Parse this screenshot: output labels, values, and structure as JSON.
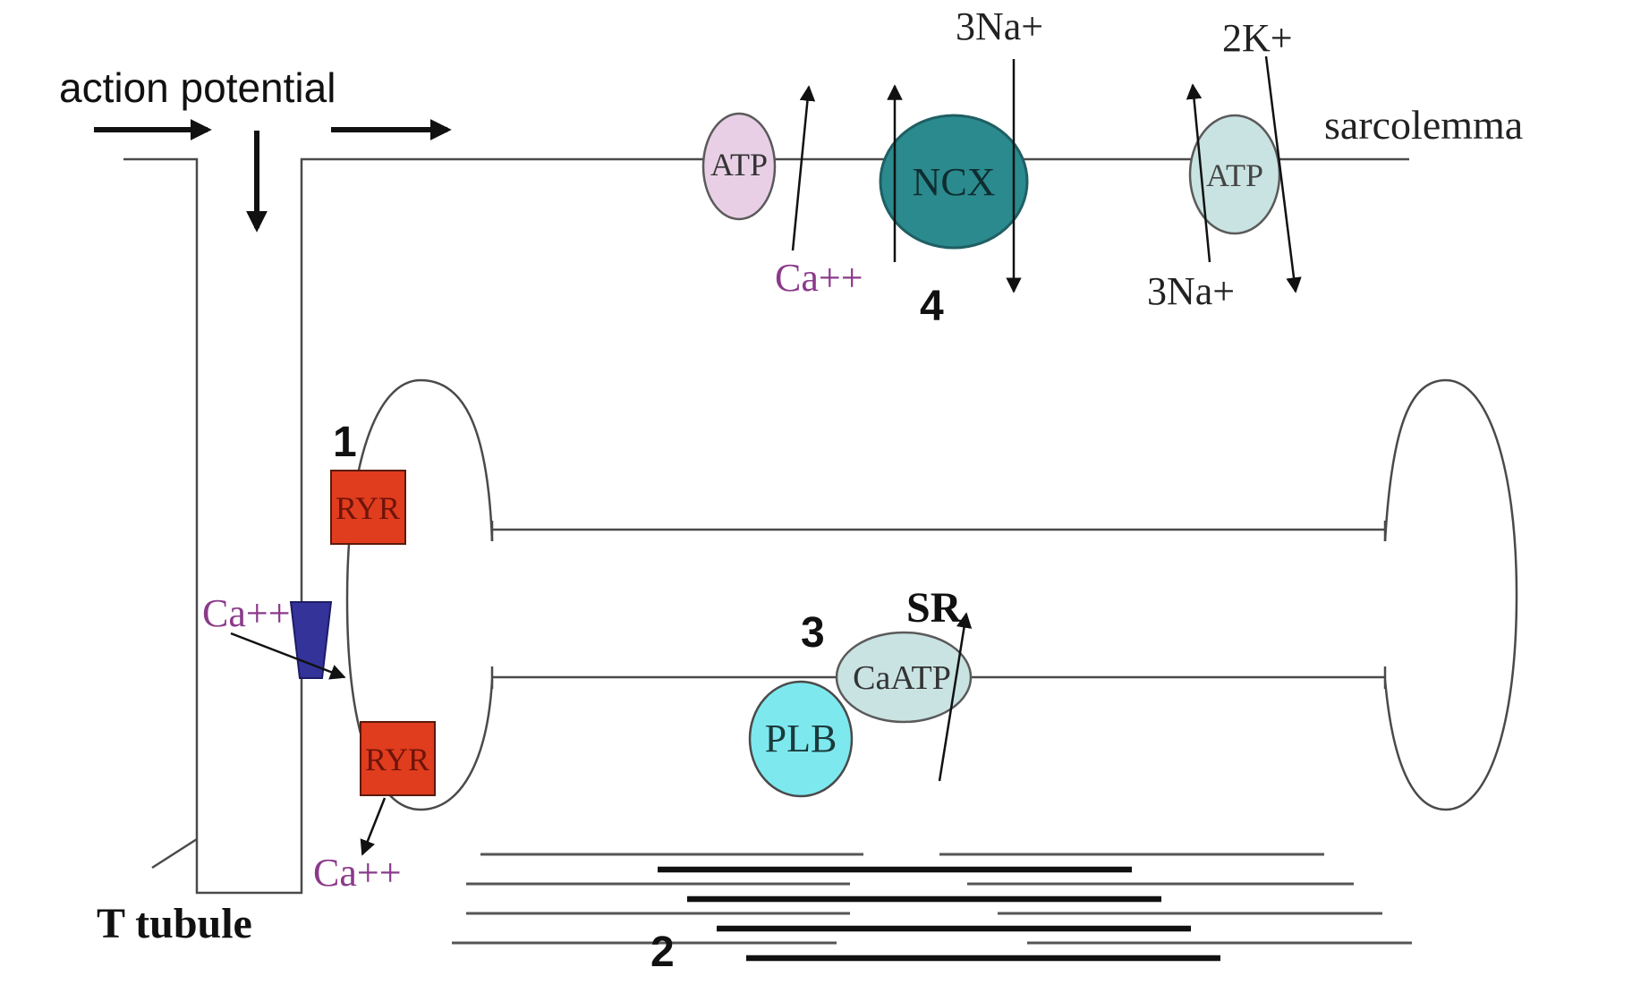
{
  "labels": {
    "action_potential": "action potential",
    "sarcolemma": "sarcolemma",
    "t_tubule": "T tubule",
    "sr": "SR",
    "na_out_ncx": "3Na+",
    "k_in": "2K+",
    "na_out_pump": "3Na+",
    "ca_pmca": "Ca++",
    "ca_ltype": "Ca++",
    "ca_ryr": "Ca++"
  },
  "numbers": {
    "n1": "1",
    "n2": "2",
    "n3": "3",
    "n4": "4"
  },
  "proteins": {
    "pmca": "ATP",
    "ncx": "NCX",
    "nak_pump": "ATP",
    "ryr_top": "RYR",
    "ryr_bottom": "RYR",
    "serca": "CaATP",
    "plb": "PLB"
  },
  "colors": {
    "line": "#4a4a4a",
    "arrow": "#111111",
    "ca_text": "#8b3a8b",
    "pmca_fill": "#e8cfe6",
    "ncx_fill": "#2b8a8e",
    "ncx_stroke": "#1f5f63",
    "nak_fill": "#c9e3e2",
    "ryr_fill": "#e03c1e",
    "ryr_text": "#6e1408",
    "ltype_fill": "#33339a",
    "serca_fill": "#c9e3e2",
    "plb_fill": "#7de9ef"
  }
}
